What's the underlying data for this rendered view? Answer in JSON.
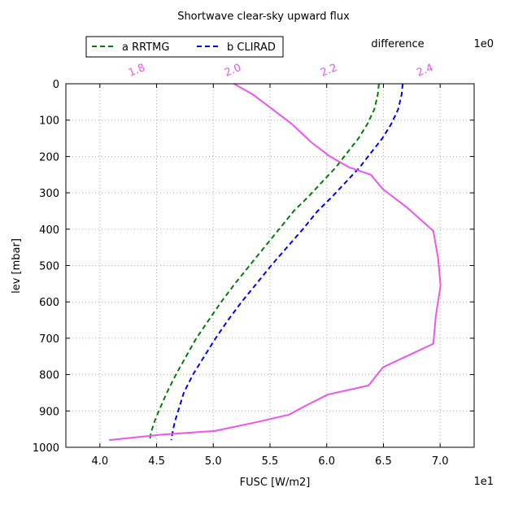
{
  "chart_data": {
    "type": "line",
    "title": "Shortwave clear-sky upward flux",
    "xlabel": "FUSC [W/m2]",
    "ylabel": "lev [mbar]",
    "x_offset_label": "1e1",
    "top_axis_label": "difference",
    "top_offset_label": "1e0",
    "xlim": [
      3.7,
      7.3
    ],
    "ylim": [
      1000,
      0
    ],
    "y_inverted": true,
    "grid": true,
    "legend_placement": "top-left outside",
    "x_ticks": [
      "4.0",
      "4.5",
      "5.0",
      "5.5",
      "6.0",
      "6.5",
      "7.0"
    ],
    "x_tick_values": [
      4.0,
      4.5,
      5.0,
      5.5,
      6.0,
      6.5,
      7.0
    ],
    "y_ticks": [
      "0",
      "100",
      "200",
      "300",
      "400",
      "500",
      "600",
      "700",
      "800",
      "900",
      "1000"
    ],
    "y_tick_values": [
      0,
      100,
      200,
      300,
      400,
      500,
      600,
      700,
      800,
      900,
      1000
    ],
    "top_xlim": [
      1.65,
      2.5
    ],
    "top_ticks": [
      "1.8",
      "2.0",
      "2.2",
      "2.4"
    ],
    "top_tick_values": [
      1.8,
      2.0,
      2.2,
      2.4
    ],
    "series": [
      {
        "name": "a RRTMG",
        "label": "a RRTMG",
        "color": "#008000",
        "linestyle": "dashed",
        "axis": "bottom",
        "points": [
          [
            6.46,
            0
          ],
          [
            6.45,
            30
          ],
          [
            6.42,
            70
          ],
          [
            6.36,
            110
          ],
          [
            6.28,
            150
          ],
          [
            6.18,
            190
          ],
          [
            6.08,
            230
          ],
          [
            5.96,
            270
          ],
          [
            5.84,
            310
          ],
          [
            5.71,
            350
          ],
          [
            5.58,
            400
          ],
          [
            5.45,
            450
          ],
          [
            5.32,
            500
          ],
          [
            5.19,
            550
          ],
          [
            5.07,
            600
          ],
          [
            4.96,
            650
          ],
          [
            4.85,
            700
          ],
          [
            4.76,
            750
          ],
          [
            4.67,
            800
          ],
          [
            4.59,
            850
          ],
          [
            4.52,
            900
          ],
          [
            4.48,
            930
          ],
          [
            4.45,
            960
          ],
          [
            4.44,
            980
          ]
        ]
      },
      {
        "name": "b CLIRAD",
        "label": "b CLIRAD",
        "color": "#0000ff",
        "linestyle": "dashed",
        "axis": "bottom",
        "points": [
          [
            6.67,
            0
          ],
          [
            6.66,
            30
          ],
          [
            6.63,
            70
          ],
          [
            6.57,
            110
          ],
          [
            6.49,
            150
          ],
          [
            6.39,
            190
          ],
          [
            6.29,
            230
          ],
          [
            6.17,
            270
          ],
          [
            6.05,
            310
          ],
          [
            5.92,
            350
          ],
          [
            5.79,
            400
          ],
          [
            5.65,
            450
          ],
          [
            5.51,
            500
          ],
          [
            5.38,
            550
          ],
          [
            5.25,
            600
          ],
          [
            5.13,
            650
          ],
          [
            5.02,
            700
          ],
          [
            4.92,
            750
          ],
          [
            4.82,
            800
          ],
          [
            4.74,
            850
          ],
          [
            4.69,
            900
          ],
          [
            4.66,
            930
          ],
          [
            4.64,
            960
          ],
          [
            4.63,
            980
          ]
        ]
      },
      {
        "name": "difference",
        "color": "#ee55ee",
        "linestyle": "solid",
        "axis": "top",
        "points": [
          [
            2.0,
            0
          ],
          [
            2.04,
            30
          ],
          [
            2.08,
            70
          ],
          [
            2.12,
            110
          ],
          [
            2.16,
            160
          ],
          [
            2.2,
            200
          ],
          [
            2.24,
            230
          ],
          [
            2.285,
            250
          ],
          [
            2.31,
            290
          ],
          [
            2.36,
            340
          ],
          [
            2.415,
            405
          ],
          [
            2.425,
            480
          ],
          [
            2.43,
            555
          ],
          [
            2.42,
            640
          ],
          [
            2.415,
            715
          ],
          [
            2.31,
            780
          ],
          [
            2.28,
            830
          ],
          [
            2.195,
            855
          ],
          [
            2.15,
            885
          ],
          [
            2.115,
            910
          ],
          [
            2.05,
            930
          ],
          [
            1.96,
            955
          ],
          [
            1.85,
            965
          ],
          [
            1.74,
            980
          ]
        ]
      }
    ]
  }
}
